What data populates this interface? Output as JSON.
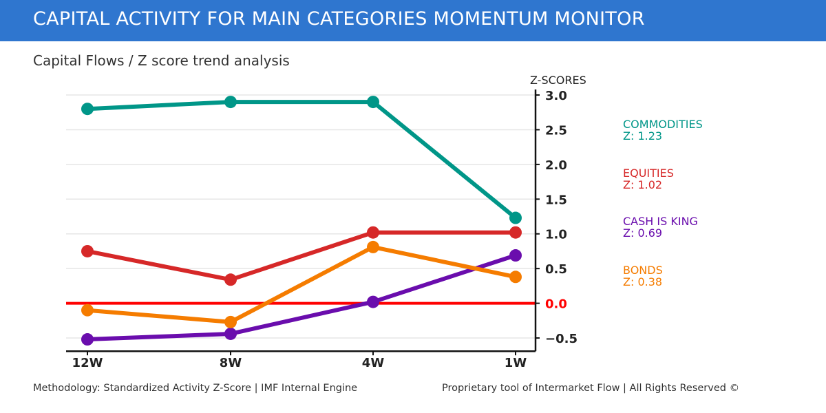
{
  "header": {
    "title": "CAPITAL ACTIVITY FOR MAIN CATEGORIES MOMENTUM MONITOR"
  },
  "subtitle": "Capital Flows / Z score trend analysis",
  "footer": {
    "left": "Methodology: Standardized Activity Z-Score | IMF Internal Engine",
    "right": "Proprietary tool of Intermarket Flow | All Rights Reserved ©"
  },
  "chart_data": {
    "type": "line",
    "title": "",
    "ylabel": "Z-SCORES",
    "xlabel": "",
    "categories": [
      "12W",
      "8W",
      "4W",
      "1W"
    ],
    "ylim": [
      -0.69,
      3.08
    ],
    "yticks": [
      -0.5,
      0.0,
      0.5,
      1.0,
      1.5,
      2.0,
      2.5,
      3.0
    ],
    "ytick_labels": [
      "−0.5",
      "0.0",
      "0.5",
      "1.0",
      "1.5",
      "2.0",
      "2.5",
      "3.0"
    ],
    "y_axis_position": "right",
    "grid": true,
    "zero_line_color": "#ff0000",
    "series": [
      {
        "name": "COMMODITIES",
        "label": "Z: 1.23",
        "color": "#009688",
        "values": [
          2.8,
          2.9,
          2.9,
          1.23
        ]
      },
      {
        "name": "EQUITIES",
        "label": "Z: 1.02",
        "color": "#d62828",
        "values": [
          0.75,
          0.34,
          1.02,
          1.02
        ]
      },
      {
        "name": "CASH IS KING",
        "label": "Z: 0.69",
        "color": "#6a0dad",
        "values": [
          -0.52,
          -0.44,
          0.02,
          0.69
        ]
      },
      {
        "name": "BONDS",
        "label": "Z: 0.38",
        "color": "#f57c00",
        "values": [
          -0.1,
          -0.27,
          0.81,
          0.38
        ]
      }
    ]
  }
}
